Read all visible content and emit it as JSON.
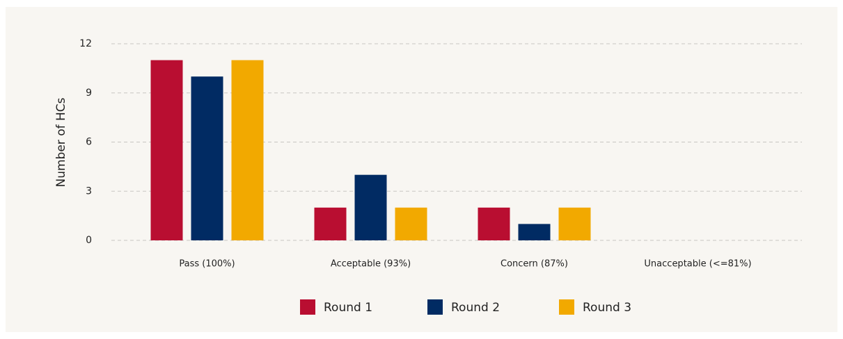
{
  "chart_data": {
    "type": "bar",
    "y_label": "Number of HCs",
    "categories": [
      "Pass (100%)",
      "Acceptable (93%)",
      "Concern (87%)",
      "Unacceptable (<=81%)"
    ],
    "series": [
      {
        "name": "Round 1",
        "color": "#b90e31",
        "values": [
          11,
          2,
          2,
          0
        ]
      },
      {
        "name": "Round 2",
        "color": "#012b63",
        "values": [
          10,
          4,
          1,
          0
        ]
      },
      {
        "name": "Round 3",
        "color": "#f2a900",
        "values": [
          11,
          2,
          2,
          0
        ]
      }
    ],
    "ylim": [
      0,
      12
    ],
    "yticks": [
      0,
      3,
      6,
      9,
      12
    ],
    "grid": true,
    "legend": "bottom"
  }
}
